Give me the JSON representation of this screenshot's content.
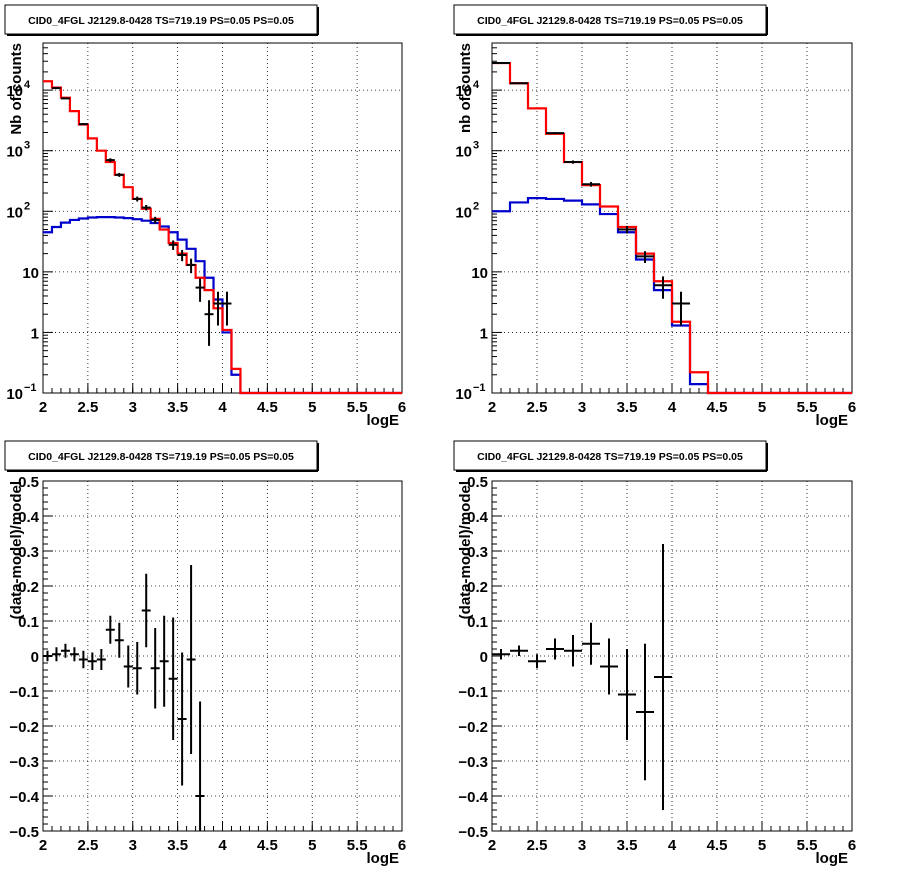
{
  "chart_data": [
    {
      "type": "line",
      "title": "CID0_4FGL J2129.8-0428 TS=719.19 PS=0.05 PS=0.05",
      "xlabel": "logE",
      "ylabel": "Nb of counts",
      "xlim": [
        2,
        6
      ],
      "ylim": [
        0.1,
        60000
      ],
      "yscale": "log",
      "grid": true,
      "x_ticks": [
        "2",
        "2.5",
        "3",
        "3.5",
        "4",
        "4.5",
        "5",
        "5.5",
        "6"
      ],
      "y_ticks": [
        "10",
        "1"
      ],
      "y_ticks_pow": [
        "−1",
        "2",
        "3",
        "4"
      ],
      "y_tick_base": "10",
      "colors": {
        "total_model": "#ff0000",
        "component": "#0000cc",
        "data": "#000000"
      },
      "bin_edges": [
        2.0,
        2.1,
        2.2,
        2.3,
        2.4,
        2.5,
        2.6,
        2.7,
        2.8,
        2.9,
        3.0,
        3.1,
        3.2,
        3.3,
        3.4,
        3.5,
        3.6,
        3.7,
        3.8,
        3.9,
        4.0,
        4.1,
        4.2,
        4.3,
        4.4,
        4.5,
        4.6,
        4.7,
        4.8,
        4.9,
        5.0,
        5.1,
        5.2,
        5.3,
        5.4,
        5.5,
        5.6,
        5.7,
        5.8,
        5.9,
        6.0
      ],
      "series": [
        {
          "values": [
            14000,
            11000,
            7500,
            4500,
            2700,
            1600,
            1000,
            650,
            400,
            250,
            160,
            110,
            75,
            50,
            30,
            20,
            13,
            8,
            5,
            2.5,
            1.1,
            0.25,
            0.1,
            0.1,
            0.1,
            0.1,
            0.1,
            0.1,
            0.1,
            0.1,
            0.1,
            0.1,
            0.1,
            0.1,
            0.1,
            0.1,
            0.1,
            0.1,
            0.1,
            0.1
          ]
        },
        {
          "values": [
            45,
            55,
            65,
            72,
            76,
            79,
            80,
            80,
            79,
            77,
            74,
            70,
            64,
            56,
            45,
            34,
            24,
            15,
            8,
            3.5,
            1.0,
            0.2,
            0.1,
            0.1,
            0.1,
            0.1,
            0.1,
            0.1,
            0.1,
            0.1,
            0.1,
            0.1,
            0.1,
            0.1,
            0.1,
            0.1,
            0.1,
            0.1,
            0.1,
            0.1
          ]
        }
      ],
      "points": [
        {
          "x": 2.15,
          "y": 10800,
          "yerr": [
            10500,
            11100
          ]
        },
        {
          "x": 2.25,
          "y": 7300,
          "yerr": [
            7100,
            7500
          ]
        },
        {
          "x": 2.45,
          "y": 2750,
          "yerr": [
            2650,
            2850
          ]
        },
        {
          "x": 2.75,
          "y": 700,
          "yerr": [
            650,
            750
          ]
        },
        {
          "x": 2.85,
          "y": 400,
          "yerr": [
            370,
            430
          ]
        },
        {
          "x": 3.05,
          "y": 160,
          "yerr": [
            145,
            175
          ]
        },
        {
          "x": 3.15,
          "y": 115,
          "yerr": [
            103,
            127
          ]
        },
        {
          "x": 3.25,
          "y": 72,
          "yerr": [
            63,
            81
          ]
        },
        {
          "x": 3.45,
          "y": 28,
          "yerr": [
            23,
            33
          ]
        },
        {
          "x": 3.55,
          "y": 19,
          "yerr": [
            15,
            23
          ]
        },
        {
          "x": 3.65,
          "y": 13,
          "yerr": [
            9.5,
            16.5
          ]
        },
        {
          "x": 3.75,
          "y": 5.5,
          "yerr": [
            3.2,
            7.8
          ]
        },
        {
          "x": 3.85,
          "y": 2,
          "yerr": [
            0.6,
            3.4
          ]
        },
        {
          "x": 3.95,
          "y": 3,
          "yerr": [
            1.3,
            4.7
          ]
        },
        {
          "x": 4.05,
          "y": 3,
          "yerr": [
            1.3,
            4.7
          ]
        }
      ]
    },
    {
      "type": "line",
      "title": "CID0_4FGL J2129.8-0428 TS=719.19 PS=0.05 PS=0.05",
      "xlabel": "logE",
      "ylabel": "nb of counts",
      "xlim": [
        2,
        6
      ],
      "ylim": [
        0.1,
        60000
      ],
      "yscale": "log",
      "grid": true,
      "x_ticks": [
        "2",
        "2.5",
        "3",
        "3.5",
        "4",
        "4.5",
        "5",
        "5.5",
        "6"
      ],
      "y_ticks": [
        "10",
        "1"
      ],
      "y_ticks_pow": [
        "−1",
        "2",
        "3",
        "4"
      ],
      "y_tick_base": "10",
      "colors": {
        "total_model": "#ff0000",
        "component": "#0000cc",
        "data": "#000000"
      },
      "bin_edges": [
        2.0,
        2.2,
        2.4,
        2.6,
        2.8,
        3.0,
        3.2,
        3.4,
        3.6,
        3.8,
        4.0,
        4.2,
        4.4,
        4.6,
        4.8,
        5.0,
        5.2,
        5.4,
        5.6,
        5.8,
        6.0
      ],
      "series": [
        {
          "values": [
            28000,
            13000,
            5000,
            1900,
            650,
            270,
            120,
            55,
            20,
            7,
            1.5,
            0.22,
            0.1,
            0.1,
            0.1,
            0.1,
            0.1,
            0.1,
            0.1,
            0.1
          ]
        },
        {
          "values": [
            100,
            140,
            165,
            160,
            150,
            130,
            90,
            45,
            16,
            5,
            1.3,
            0.14,
            0.1,
            0.1,
            0.1,
            0.1,
            0.1,
            0.1,
            0.1,
            0.1
          ]
        }
      ],
      "points": [
        {
          "x": 2.1,
          "y": 28000,
          "yerr": [
            27700,
            28300
          ]
        },
        {
          "x": 2.3,
          "y": 13000,
          "yerr": [
            12800,
            13200
          ]
        },
        {
          "x": 2.7,
          "y": 1950,
          "yerr": [
            1880,
            2020
          ]
        },
        {
          "x": 2.9,
          "y": 650,
          "yerr": [
            610,
            690
          ]
        },
        {
          "x": 3.1,
          "y": 280,
          "yerr": [
            255,
            305
          ]
        },
        {
          "x": 3.5,
          "y": 50,
          "yerr": [
            43,
            57
          ]
        },
        {
          "x": 3.7,
          "y": 18,
          "yerr": [
            14,
            22
          ]
        },
        {
          "x": 3.9,
          "y": 6,
          "yerr": [
            3.6,
            8.4
          ]
        },
        {
          "x": 4.1,
          "y": 3,
          "yerr": [
            1.3,
            4.7
          ]
        }
      ]
    },
    {
      "type": "scatter",
      "title": "CID0_4FGL J2129.8-0428 TS=719.19 PS=0.05 PS=0.05",
      "xlabel": "logE",
      "ylabel": "(data-model)/model",
      "xlim": [
        2,
        6
      ],
      "ylim": [
        -0.5,
        0.5
      ],
      "grid": true,
      "x_ticks": [
        "2",
        "2.5",
        "3",
        "3.5",
        "4",
        "4.5",
        "5",
        "5.5",
        "6"
      ],
      "y_ticks": [
        "−0.5",
        "−0.4",
        "−0.3",
        "−0.2",
        "−0.1",
        "0",
        "0.1",
        "0.2",
        "0.3",
        "0.4",
        "0.5"
      ],
      "bin_width": 0.1,
      "points": [
        {
          "x": 2.05,
          "y": 0.0,
          "yerr": 0.015
        },
        {
          "x": 2.15,
          "y": 0.005,
          "yerr": 0.02
        },
        {
          "x": 2.25,
          "y": 0.015,
          "yerr": 0.02
        },
        {
          "x": 2.35,
          "y": 0.005,
          "yerr": 0.02
        },
        {
          "x": 2.45,
          "y": -0.01,
          "yerr": 0.025
        },
        {
          "x": 2.55,
          "y": -0.015,
          "yerr": 0.025
        },
        {
          "x": 2.65,
          "y": -0.01,
          "yerr": 0.03
        },
        {
          "x": 2.75,
          "y": 0.075,
          "yerr": 0.04
        },
        {
          "x": 2.85,
          "y": 0.045,
          "yerr": 0.05
        },
        {
          "x": 2.95,
          "y": -0.03,
          "yerr": 0.06
        },
        {
          "x": 3.05,
          "y": -0.035,
          "yerr": 0.075
        },
        {
          "x": 3.15,
          "y": 0.13,
          "yerr": 0.105
        },
        {
          "x": 3.25,
          "y": -0.035,
          "yerr": 0.115
        },
        {
          "x": 3.35,
          "y": -0.015,
          "yerr": 0.13
        },
        {
          "x": 3.45,
          "y": -0.065,
          "yerr": 0.175
        },
        {
          "x": 3.55,
          "y": -0.18,
          "yerr": 0.19
        },
        {
          "x": 3.65,
          "y": -0.01,
          "yerr": 0.27
        },
        {
          "x": 3.75,
          "y": -0.4,
          "yerr": 0.27
        }
      ]
    },
    {
      "type": "scatter",
      "title": "CID0_4FGL J2129.8-0428 TS=719.19 PS=0.05 PS=0.05",
      "xlabel": "logE",
      "ylabel": "(data-model)/model",
      "xlim": [
        2,
        6
      ],
      "ylim": [
        -0.5,
        0.5
      ],
      "grid": true,
      "x_ticks": [
        "2",
        "2.5",
        "3",
        "3.5",
        "4",
        "4.5",
        "5",
        "5.5",
        "6"
      ],
      "y_ticks": [
        "−0.5",
        "−0.4",
        "−0.3",
        "−0.2",
        "−0.1",
        "0",
        "0.1",
        "0.2",
        "0.3",
        "0.4",
        "0.5"
      ],
      "bin_width": 0.2,
      "points": [
        {
          "x": 2.1,
          "y": 0.005,
          "yerr": 0.015
        },
        {
          "x": 2.3,
          "y": 0.015,
          "yerr": 0.015
        },
        {
          "x": 2.5,
          "y": -0.015,
          "yerr": 0.02
        },
        {
          "x": 2.7,
          "y": 0.02,
          "yerr": 0.03
        },
        {
          "x": 2.9,
          "y": 0.015,
          "yerr": 0.045
        },
        {
          "x": 3.1,
          "y": 0.035,
          "yerr": 0.06
        },
        {
          "x": 3.3,
          "y": -0.03,
          "yerr": 0.08
        },
        {
          "x": 3.5,
          "y": -0.11,
          "yerr": 0.13
        },
        {
          "x": 3.7,
          "y": -0.16,
          "yerr": 0.195
        },
        {
          "x": 3.9,
          "y": -0.06,
          "yerr": 0.38
        }
      ]
    }
  ]
}
